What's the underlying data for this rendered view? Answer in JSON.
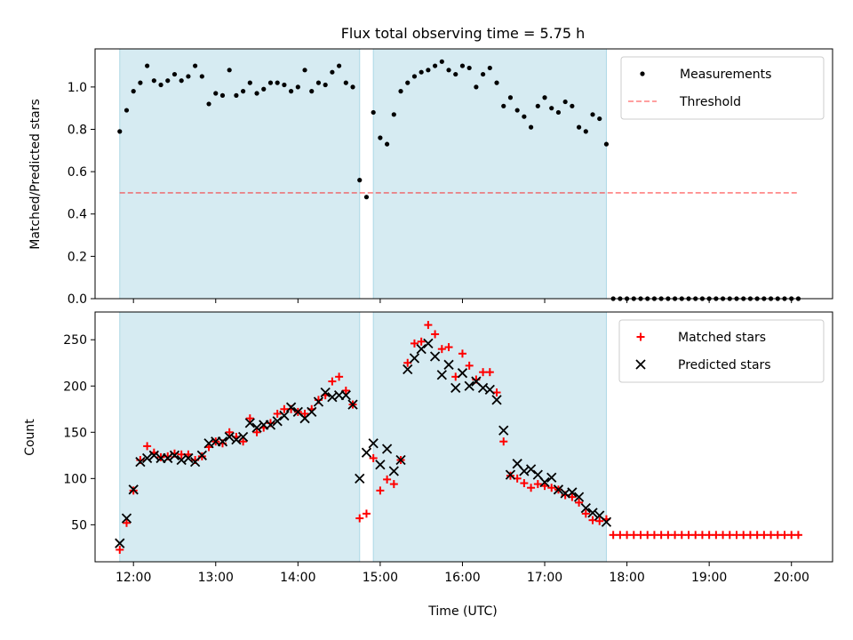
{
  "figure": {
    "title": "Flux total observing time = 5.75 h"
  },
  "colors": {
    "shade": "#add8e6",
    "threshold": "#ff0000",
    "measurement": "#000000",
    "matched": "#ff0000",
    "predicted": "#000000"
  },
  "chart_data": [
    {
      "type": "scatter",
      "panel": "top",
      "ylabel": "Matched/Predicted stars",
      "xlabel": "",
      "xlim": [
        "11:32",
        "20:30"
      ],
      "ylim": [
        0,
        1.18
      ],
      "yticks": [
        0.0,
        0.2,
        0.4,
        0.6,
        0.8,
        1.0
      ],
      "ytick_labels": [
        "0.0",
        "0.2",
        "0.4",
        "0.6",
        "0.8",
        "1.0"
      ],
      "xticks": [
        "12:00",
        "13:00",
        "14:00",
        "15:00",
        "16:00",
        "17:00",
        "18:00",
        "19:00",
        "20:00"
      ],
      "grid": false,
      "legend": "top-right",
      "shaded_intervals": [
        [
          "11:50",
          "14:45"
        ],
        [
          "14:55",
          "17:45"
        ]
      ],
      "threshold": {
        "name": "Threshold",
        "y": 0.5,
        "x": [
          "11:50",
          "20:05"
        ],
        "style": "dashed"
      },
      "series": [
        {
          "name": "Measurements",
          "x": [
            "11:50",
            "11:55",
            "12:00",
            "12:05",
            "12:10",
            "12:15",
            "12:20",
            "12:25",
            "12:30",
            "12:35",
            "12:40",
            "12:45",
            "12:50",
            "12:55",
            "13:00",
            "13:05",
            "13:10",
            "13:15",
            "13:20",
            "13:25",
            "13:30",
            "13:35",
            "13:40",
            "13:45",
            "13:50",
            "13:55",
            "14:00",
            "14:05",
            "14:10",
            "14:15",
            "14:20",
            "14:25",
            "14:30",
            "14:35",
            "14:40",
            "14:45",
            "14:50",
            "14:55",
            "15:00",
            "15:05",
            "15:10",
            "15:15",
            "15:20",
            "15:25",
            "15:30",
            "15:35",
            "15:40",
            "15:45",
            "15:50",
            "15:55",
            "16:00",
            "16:05",
            "16:10",
            "16:15",
            "16:20",
            "16:25",
            "16:30",
            "16:35",
            "16:40",
            "16:45",
            "16:50",
            "16:55",
            "17:00",
            "17:05",
            "17:10",
            "17:15",
            "17:20",
            "17:25",
            "17:30",
            "17:35",
            "17:40",
            "17:45",
            "17:50",
            "17:55",
            "18:00",
            "18:05",
            "18:10",
            "18:15",
            "18:20",
            "18:25",
            "18:30",
            "18:35",
            "18:40",
            "18:45",
            "18:50",
            "18:55",
            "19:00",
            "19:05",
            "19:10",
            "19:15",
            "19:20",
            "19:25",
            "19:30",
            "19:35",
            "19:40",
            "19:45",
            "19:50",
            "19:55",
            "20:00",
            "20:05"
          ],
          "y": [
            0.79,
            0.89,
            0.98,
            1.02,
            1.1,
            1.03,
            1.01,
            1.03,
            1.06,
            1.03,
            1.05,
            1.1,
            1.05,
            0.92,
            0.97,
            0.96,
            1.08,
            0.96,
            0.98,
            1.02,
            0.97,
            0.99,
            1.02,
            1.02,
            1.01,
            0.98,
            1.0,
            1.08,
            0.98,
            1.02,
            1.01,
            1.07,
            1.1,
            1.02,
            1.0,
            0.56,
            0.48,
            0.88,
            0.76,
            0.73,
            0.87,
            0.98,
            1.02,
            1.05,
            1.07,
            1.08,
            1.1,
            1.12,
            1.08,
            1.06,
            1.1,
            1.09,
            1.0,
            1.06,
            1.09,
            1.02,
            0.91,
            0.95,
            0.89,
            0.86,
            0.81,
            0.91,
            0.95,
            0.9,
            0.88,
            0.93,
            0.91,
            0.81,
            0.79,
            0.87,
            0.85,
            0.73,
            0,
            0,
            0,
            0,
            0,
            0,
            0,
            0,
            0,
            0,
            0,
            0,
            0,
            0,
            0,
            0,
            0,
            0,
            0,
            0,
            0,
            0,
            0,
            0,
            0,
            0,
            0,
            0
          ]
        }
      ]
    },
    {
      "type": "scatter",
      "panel": "bottom",
      "ylabel": "Count",
      "xlabel": "Time (UTC)",
      "xlim": [
        "11:32",
        "20:30"
      ],
      "ylim": [
        10,
        280
      ],
      "yticks": [
        50,
        100,
        150,
        200,
        250
      ],
      "ytick_labels": [
        "50",
        "100",
        "150",
        "200",
        "250"
      ],
      "xticks": [
        "12:00",
        "13:00",
        "14:00",
        "15:00",
        "16:00",
        "17:00",
        "18:00",
        "19:00",
        "20:00"
      ],
      "xtick_labels": [
        "12:00",
        "13:00",
        "14:00",
        "15:00",
        "16:00",
        "17:00",
        "18:00",
        "19:00",
        "20:00"
      ],
      "grid": false,
      "legend": "top-right",
      "shaded_intervals": [
        [
          "11:50",
          "14:45"
        ],
        [
          "14:55",
          "17:45"
        ]
      ],
      "series": [
        {
          "name": "Matched stars",
          "marker": "plus",
          "x": [
            "11:50",
            "11:55",
            "12:00",
            "12:05",
            "12:10",
            "12:15",
            "12:20",
            "12:25",
            "12:30",
            "12:35",
            "12:40",
            "12:45",
            "12:50",
            "12:55",
            "13:00",
            "13:05",
            "13:10",
            "13:15",
            "13:20",
            "13:25",
            "13:30",
            "13:35",
            "13:40",
            "13:45",
            "13:50",
            "13:55",
            "14:00",
            "14:05",
            "14:10",
            "14:15",
            "14:20",
            "14:25",
            "14:30",
            "14:35",
            "14:40",
            "14:45",
            "14:50",
            "14:55",
            "15:00",
            "15:05",
            "15:10",
            "15:15",
            "15:20",
            "15:25",
            "15:30",
            "15:35",
            "15:40",
            "15:45",
            "15:50",
            "15:55",
            "16:00",
            "16:05",
            "16:10",
            "16:15",
            "16:20",
            "16:25",
            "16:30",
            "16:35",
            "16:40",
            "16:45",
            "16:50",
            "16:55",
            "17:00",
            "17:05",
            "17:10",
            "17:15",
            "17:20",
            "17:25",
            "17:30",
            "17:35",
            "17:40",
            "17:45",
            "17:50",
            "17:55",
            "18:00",
            "18:05",
            "18:10",
            "18:15",
            "18:20",
            "18:25",
            "18:30",
            "18:35",
            "18:40",
            "18:45",
            "18:50",
            "18:55",
            "19:00",
            "19:05",
            "19:10",
            "19:15",
            "19:20",
            "19:25",
            "19:30",
            "19:35",
            "19:40",
            "19:45",
            "19:50",
            "19:55",
            "20:00",
            "20:05"
          ],
          "y": [
            23,
            52,
            87,
            120,
            135,
            128,
            123,
            124,
            127,
            126,
            126,
            120,
            124,
            134,
            140,
            138,
            150,
            145,
            140,
            165,
            150,
            155,
            160,
            170,
            175,
            175,
            172,
            170,
            175,
            185,
            190,
            205,
            210,
            195,
            180,
            57,
            62,
            122,
            87,
            99,
            94,
            120,
            225,
            246,
            248,
            266,
            256,
            240,
            242,
            210,
            235,
            222,
            207,
            215,
            215,
            193,
            140,
            103,
            100,
            95,
            90,
            94,
            92,
            90,
            88,
            82,
            80,
            74,
            62,
            55,
            54,
            56,
            39,
            39,
            39,
            39,
            39,
            39,
            39,
            39,
            39,
            39,
            39,
            39,
            39,
            39,
            39,
            39,
            39,
            39,
            39,
            39,
            39,
            39,
            39,
            39,
            39,
            39,
            39,
            39
          ]
        },
        {
          "name": "Predicted stars",
          "marker": "x",
          "x": [
            "11:50",
            "11:55",
            "12:00",
            "12:05",
            "12:10",
            "12:15",
            "12:20",
            "12:25",
            "12:30",
            "12:35",
            "12:40",
            "12:45",
            "12:50",
            "12:55",
            "13:00",
            "13:05",
            "13:10",
            "13:15",
            "13:20",
            "13:25",
            "13:30",
            "13:35",
            "13:40",
            "13:45",
            "13:50",
            "13:55",
            "14:00",
            "14:05",
            "14:10",
            "14:15",
            "14:20",
            "14:25",
            "14:30",
            "14:35",
            "14:40",
            "14:45",
            "14:50",
            "14:55",
            "15:00",
            "15:05",
            "15:10",
            "15:15",
            "15:20",
            "15:25",
            "15:30",
            "15:35",
            "15:40",
            "15:45",
            "15:50",
            "15:55",
            "16:00",
            "16:05",
            "16:10",
            "16:15",
            "16:20",
            "16:25",
            "16:30",
            "16:35",
            "16:40",
            "16:45",
            "16:50",
            "16:55",
            "17:00",
            "17:05",
            "17:10",
            "17:15",
            "17:20",
            "17:25",
            "17:30",
            "17:35",
            "17:40",
            "17:45"
          ],
          "y": [
            30,
            57,
            88,
            118,
            122,
            125,
            122,
            122,
            125,
            120,
            122,
            118,
            125,
            138,
            140,
            140,
            145,
            142,
            145,
            160,
            155,
            158,
            158,
            162,
            168,
            177,
            172,
            165,
            172,
            183,
            193,
            188,
            190,
            190,
            180,
            100,
            128,
            138,
            115,
            132,
            108,
            120,
            218,
            230,
            240,
            246,
            232,
            212,
            223,
            198,
            214,
            200,
            205,
            198,
            196,
            185,
            152,
            104,
            116,
            108,
            110,
            104,
            96,
            101,
            88,
            84,
            85,
            80,
            68,
            63,
            60,
            53
          ]
        }
      ]
    }
  ]
}
